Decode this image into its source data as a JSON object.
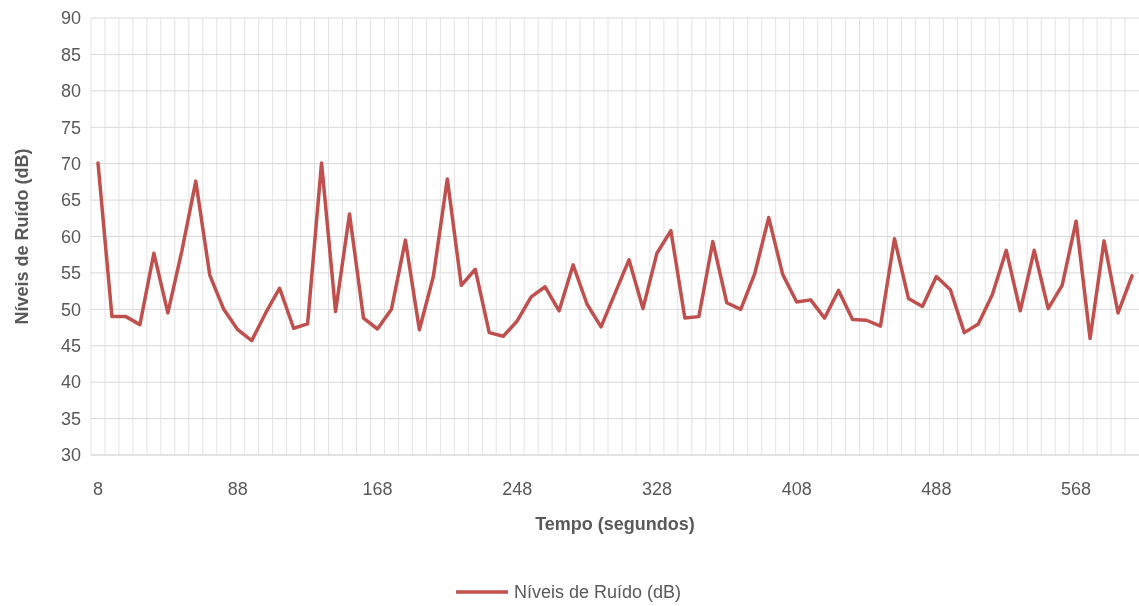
{
  "chart_data": {
    "type": "line",
    "xlabel": "Tempo (segundos)",
    "ylabel": "Níveis de Ruído (dB)",
    "categories": [
      "8",
      null,
      null,
      null,
      null,
      null,
      null,
      null,
      null,
      null,
      "88",
      null,
      null,
      null,
      null,
      null,
      null,
      null,
      null,
      null,
      "168",
      null,
      null,
      null,
      null,
      null,
      null,
      null,
      null,
      null,
      "248",
      null,
      null,
      null,
      null,
      null,
      null,
      null,
      null,
      null,
      "328",
      null,
      null,
      null,
      null,
      null,
      null,
      null,
      null,
      null,
      "408",
      null,
      null,
      null,
      null,
      null,
      null,
      null,
      null,
      null,
      "488",
      null,
      null,
      null,
      null,
      null,
      null,
      null,
      null,
      null,
      "568",
      null,
      null,
      null,
      null
    ],
    "series": [
      {
        "name": "Níveis de Ruído (dB)",
        "color": "#c0504d",
        "values": [
          70.1,
          49.0,
          49.0,
          47.9,
          57.7,
          49.5,
          58.0,
          67.6,
          54.7,
          50.0,
          47.2,
          45.7,
          49.5,
          52.9,
          47.4,
          48.0,
          70.1,
          49.7,
          63.1,
          48.8,
          47.3,
          50.0,
          59.5,
          47.2,
          54.5,
          67.9,
          53.3,
          55.5,
          46.8,
          46.3,
          48.4,
          51.7,
          53.1,
          49.8,
          56.1,
          50.7,
          47.6,
          52.2,
          56.8,
          50.1,
          57.7,
          60.8,
          48.8,
          49.0,
          59.3,
          50.9,
          50.0,
          54.9,
          62.6,
          54.8,
          51.0,
          51.3,
          48.8,
          52.6,
          48.6,
          48.5,
          47.7,
          59.7,
          51.5,
          50.4,
          54.5,
          52.7,
          46.8,
          48.0,
          52.0,
          58.1,
          49.8,
          58.1,
          50.1,
          53.3,
          62.1,
          46.0,
          59.4,
          49.5,
          54.6
        ]
      }
    ],
    "ylim": [
      30,
      90
    ],
    "yticks": [
      30,
      35,
      40,
      45,
      50,
      55,
      60,
      65,
      70,
      75,
      80,
      85,
      90
    ],
    "grid": true,
    "legend": "bottom",
    "marker": "none",
    "line_style": "solid"
  }
}
